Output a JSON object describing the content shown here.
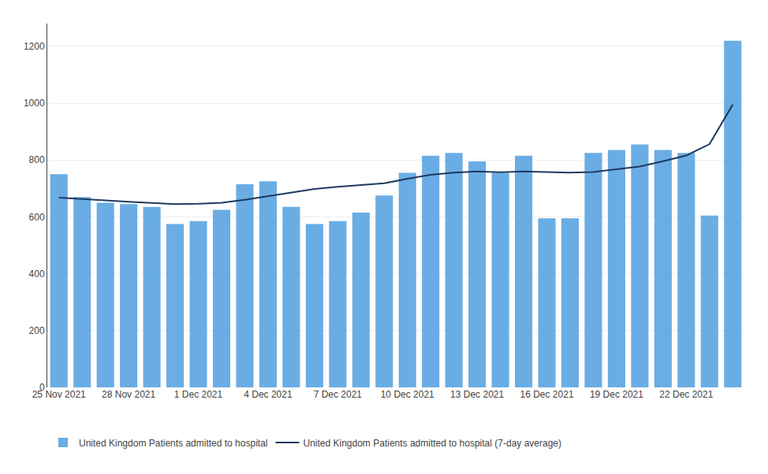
{
  "chart_data": {
    "type": "bar",
    "categories": [
      "25 Nov 2021",
      null,
      null,
      "28 Nov 2021",
      null,
      null,
      "1 Dec 2021",
      null,
      null,
      "4 Dec 2021",
      null,
      null,
      "7 Dec 2021",
      null,
      null,
      "10 Dec 2021",
      null,
      null,
      "13 Dec 2021",
      null,
      null,
      "16 Dec 2021",
      null,
      null,
      "19 Dec 2021",
      null,
      null,
      "22 Dec 2021",
      null,
      null
    ],
    "series": [
      {
        "name": "United Kingdom Patients admitted to hospital",
        "type": "bar",
        "color": "#6aade4",
        "values": [
          750,
          670,
          650,
          645,
          635,
          575,
          585,
          625,
          715,
          725,
          635,
          575,
          585,
          615,
          675,
          755,
          815,
          825,
          795,
          755,
          815,
          595,
          595,
          825,
          835,
          855,
          835,
          825,
          605,
          1220
        ]
      },
      {
        "name": "United Kingdom Patients admitted to hospital (7-day average)",
        "type": "line",
        "color": "#1e3a5f",
        "values": [
          668,
          662,
          658,
          653,
          648,
          645,
          646,
          650,
          660,
          673,
          686,
          698,
          706,
          712,
          718,
          734,
          748,
          756,
          760,
          757,
          760,
          758,
          756,
          758,
          767,
          777,
          796,
          816,
          856,
          995
        ]
      }
    ],
    "ylim": [
      0,
      1280
    ],
    "yticks": [
      0,
      200,
      400,
      600,
      800,
      1000,
      1200
    ],
    "grid": true,
    "legend": "lower left"
  }
}
